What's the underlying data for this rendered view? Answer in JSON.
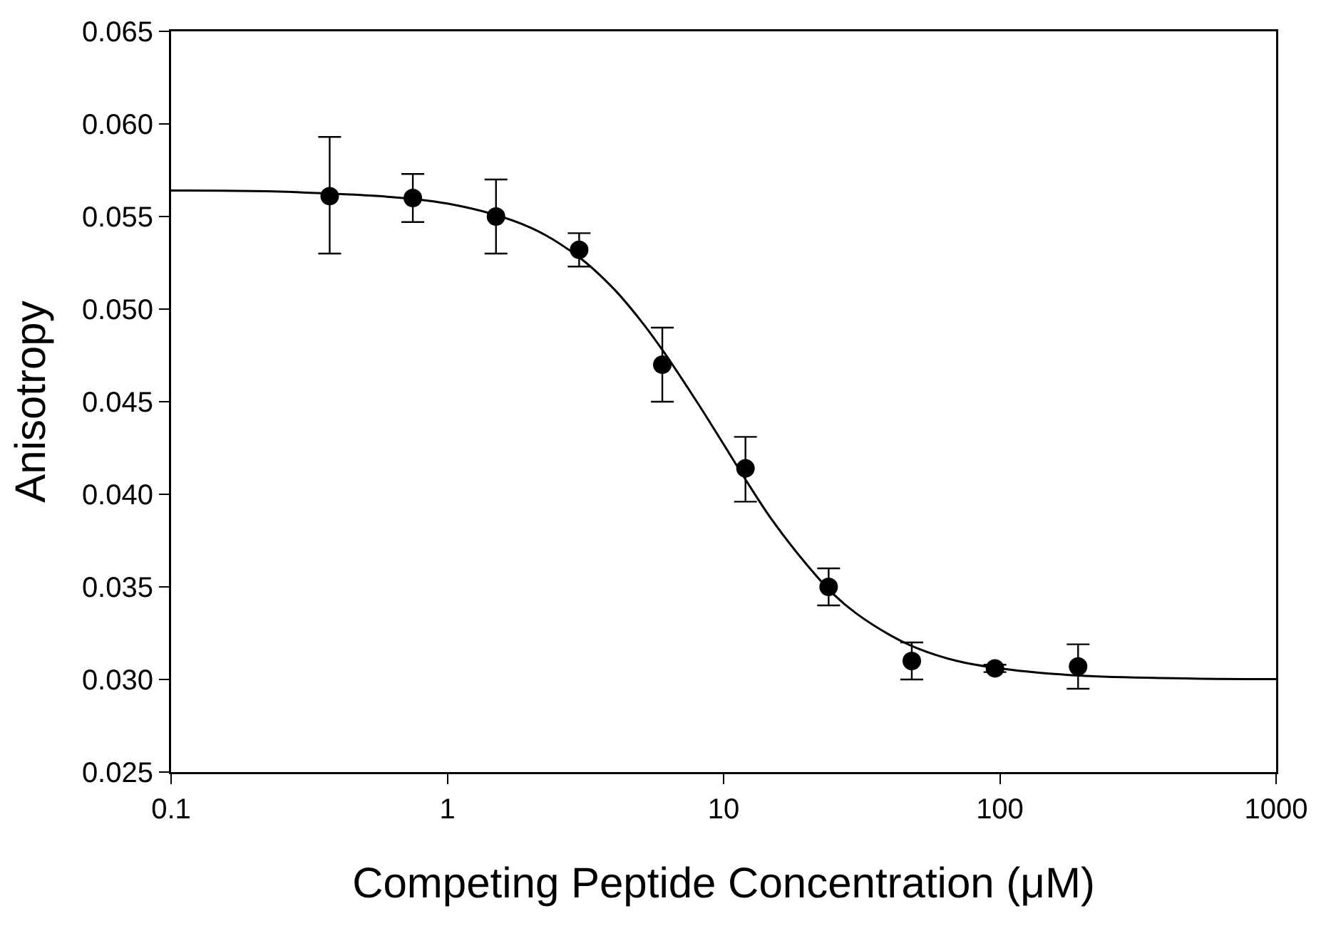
{
  "chart_data": {
    "type": "scatter",
    "xlabel": "Competing Peptide Concentration (μM)",
    "ylabel": "Anisotropy",
    "log": "x",
    "grid": false,
    "marker": "circle",
    "xlim": [
      0.1,
      1000
    ],
    "xticks": [
      0.1,
      1,
      10,
      100,
      1000
    ],
    "ylim": [
      0.025,
      0.065
    ],
    "yticks": [
      0.025,
      {
        "value": 0.03,
        "label": "0.030"
      },
      0.035,
      {
        "value": 0.04,
        "label": "0.040"
      },
      0.045,
      {
        "value": 0.05,
        "label": "0.050"
      },
      0.055,
      {
        "value": 0.06,
        "label": "0.060"
      },
      0.065
    ],
    "series": [
      {
        "type": "line",
        "color": "#000000",
        "line_style": "solid",
        "marker": "none",
        "x": [
          0.1,
          0.3,
          1,
          2,
          3,
          4,
          5,
          6,
          8,
          10,
          12,
          15,
          20,
          25,
          30,
          40,
          50,
          70,
          100,
          200,
          500,
          1000
        ],
        "values": [
          0.0564,
          0.0563,
          0.0557,
          0.0544,
          0.0528,
          0.0511,
          0.0494,
          0.0478,
          0.045,
          0.0427,
          0.0408,
          0.0386,
          0.0362,
          0.0346,
          0.0336,
          0.0324,
          0.0317,
          0.031,
          0.0306,
          0.0302,
          0.03005,
          0.03002
        ]
      },
      {
        "color": "#000000",
        "x": [
          0.375,
          0.75,
          1.5,
          3,
          6,
          12,
          24,
          48,
          96,
          192
        ],
        "values": [
          0.0561,
          0.056,
          0.055,
          0.0532,
          0.047,
          0.0414,
          0.035,
          0.031,
          0.0306,
          0.0307
        ],
        "errors": [
          [
            0.053,
            0.0593
          ],
          [
            0.0547,
            0.0573
          ],
          [
            0.053,
            0.057
          ],
          [
            0.0523,
            0.0541
          ],
          [
            0.045,
            0.049
          ],
          [
            0.0396,
            0.0431
          ],
          [
            0.034,
            0.036
          ],
          [
            0.03,
            0.032
          ],
          [
            0.0304,
            0.0308
          ],
          [
            0.0295,
            0.0319
          ]
        ]
      }
    ]
  }
}
